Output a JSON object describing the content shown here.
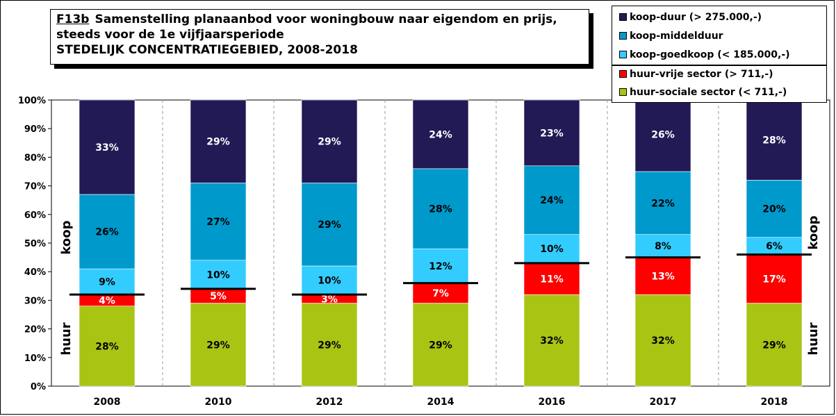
{
  "title": {
    "code": "F13b",
    "line1": "Samenstelling planaanbod voor woningbouw naar eigendom en prijs,",
    "line2": "steeds voor de 1e vijfjaarsperiode",
    "line3": "STEDELIJK CONCENTRATIEGEBIED, 2008-2018"
  },
  "chart_data": {
    "type": "bar",
    "stacked": true,
    "percent": true,
    "categories": [
      "2008",
      "2010",
      "2012",
      "2014",
      "2016",
      "2017",
      "2018"
    ],
    "series": [
      {
        "name": "huur-sociale sector (< 711,-)",
        "color": "#aac414",
        "values": [
          28,
          29,
          29,
          29,
          32,
          32,
          29
        ]
      },
      {
        "name": "huur-vrije sector (> 711,-)",
        "color": "#ff0000",
        "values": [
          4,
          5,
          3,
          7,
          11,
          13,
          17
        ]
      },
      {
        "name": "koop-goedkoop (< 185.000,-)",
        "color": "#33ccff",
        "values": [
          9,
          10,
          10,
          12,
          10,
          8,
          6
        ]
      },
      {
        "name": "koop-middelduur",
        "color": "#0099cc",
        "values": [
          26,
          27,
          29,
          28,
          24,
          22,
          20
        ]
      },
      {
        "name": "koop-duur (> 275.000,-)",
        "color": "#221a55",
        "values": [
          33,
          29,
          29,
          24,
          23,
          26,
          28
        ]
      }
    ],
    "data_labels": [
      [
        "28%",
        "29%",
        "29%",
        "29%",
        "32%",
        "32%",
        "29%"
      ],
      [
        "4%",
        "5%",
        "3%",
        "7%",
        "11%",
        "13%",
        "17%"
      ],
      [
        "9%",
        "10%",
        "10%",
        "12%",
        "10%",
        "8%",
        "6%"
      ],
      [
        "26%",
        "27%",
        "29%",
        "28%",
        "24%",
        "22%",
        "20%"
      ],
      [
        "33%",
        "29%",
        "29%",
        "24%",
        "23%",
        "26%",
        "28%"
      ]
    ],
    "yticks": [
      "0%",
      "10%",
      "20%",
      "30%",
      "40%",
      "50%",
      "60%",
      "70%",
      "80%",
      "90%",
      "100%"
    ],
    "ylim": [
      0,
      100
    ],
    "grid": "x-dashed",
    "legend_position": "top-right",
    "side_labels": {
      "huur": "huur",
      "koop": "koop"
    }
  },
  "legend": {
    "items": [
      {
        "label": "koop-duur (> 275.000,-)",
        "color": "#221a55"
      },
      {
        "label": "koop-middelduur",
        "color": "#0099cc"
      },
      {
        "label": "koop-goedkoop (< 185.000,-)",
        "color": "#33ccff"
      },
      {
        "label": "huur-vrije sector (> 711,-)",
        "color": "#ff0000"
      },
      {
        "label": "huur-sociale sector (< 711,-)",
        "color": "#aac414"
      }
    ]
  }
}
